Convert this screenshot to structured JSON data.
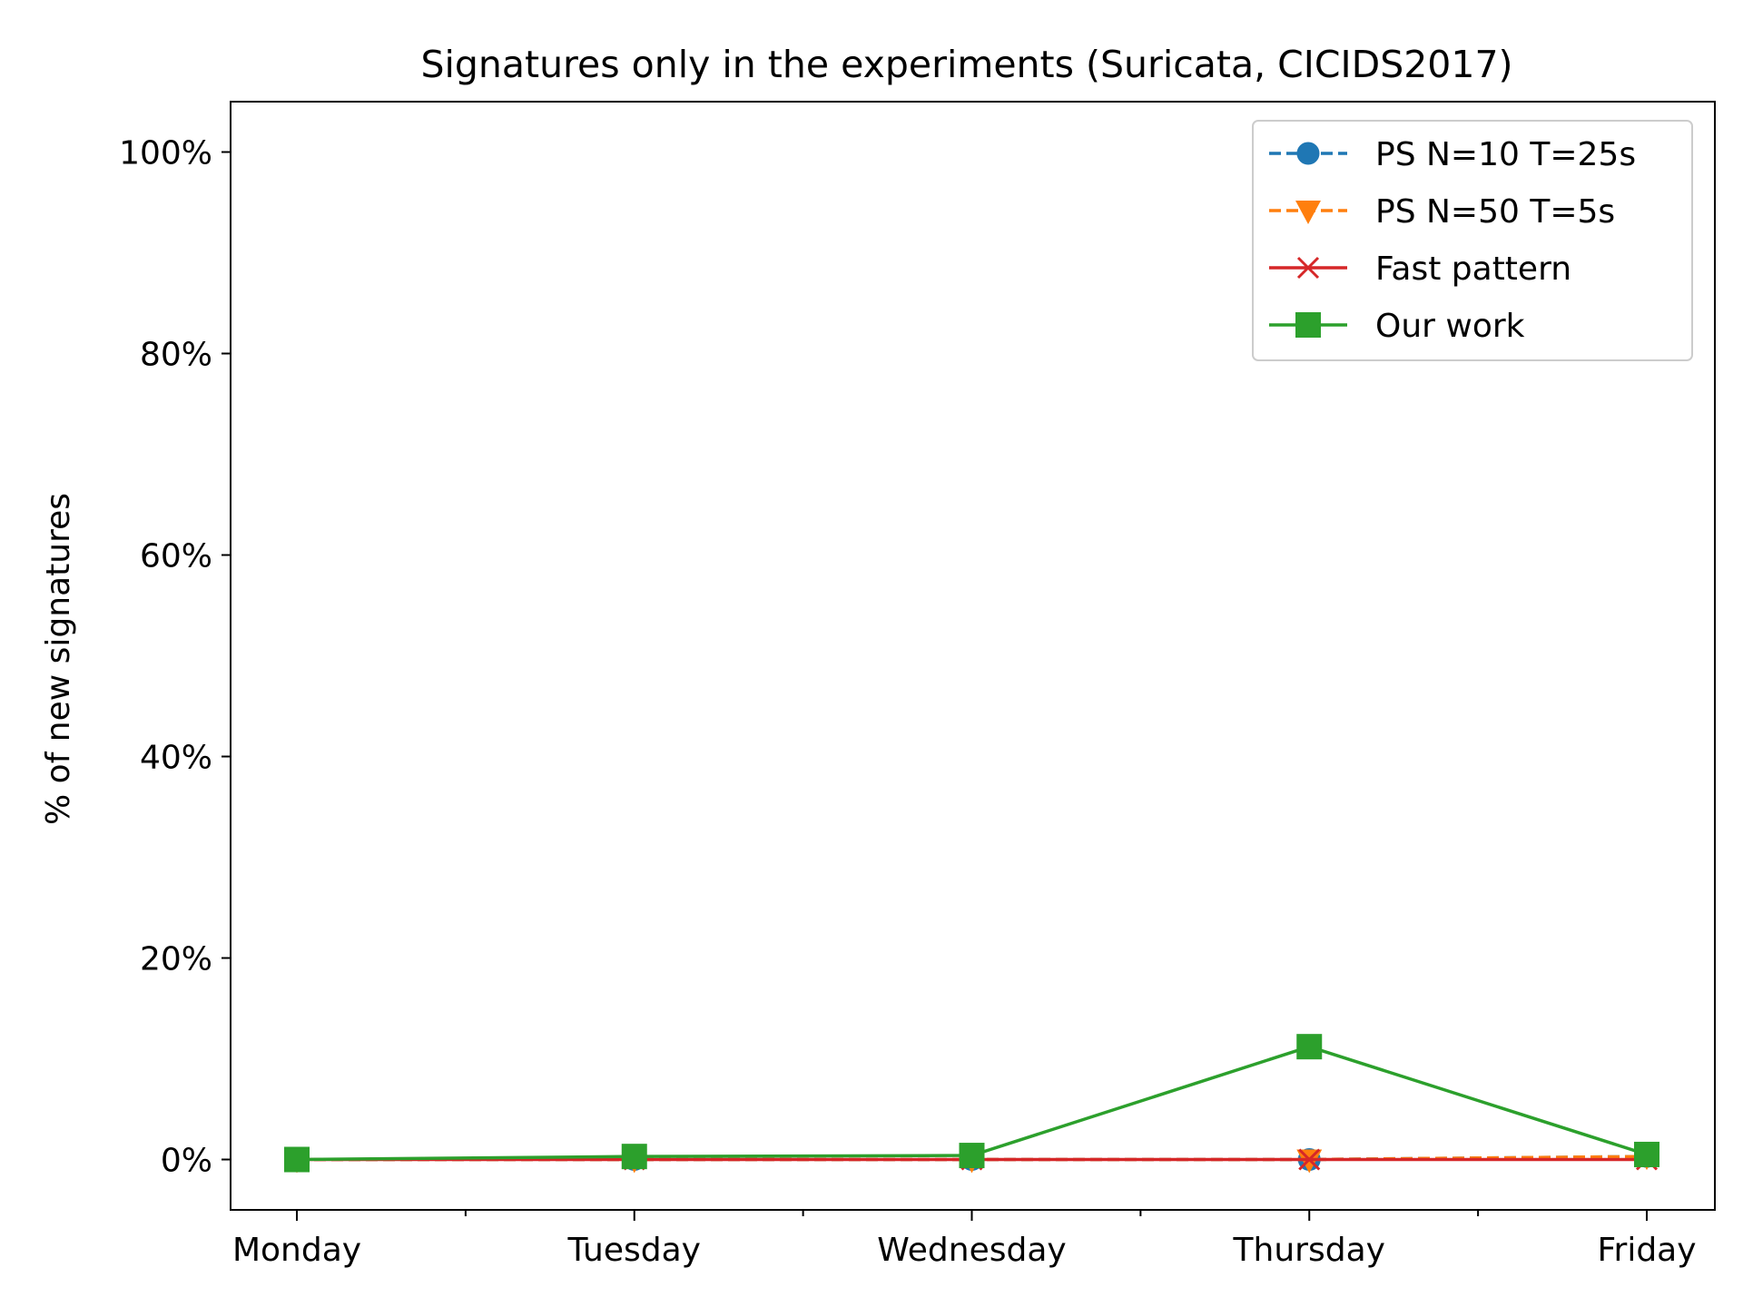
{
  "chart_data": {
    "type": "line",
    "title": "Signatures only in the experiments (Suricata, CICIDS2017)",
    "xlabel": "",
    "ylabel": "% of new signatures",
    "categories": [
      "Monday",
      "Tuesday",
      "Wednesday",
      "Thursday",
      "Friday"
    ],
    "ylim": [
      -5,
      105
    ],
    "yticks": [
      0,
      20,
      40,
      60,
      80,
      100
    ],
    "ytick_labels": [
      "0%",
      "20%",
      "40%",
      "60%",
      "80%",
      "100%"
    ],
    "grid": false,
    "legend_position": "top-right",
    "series": [
      {
        "name": "PS N=10 T=25s",
        "values": [
          0,
          0,
          0,
          0,
          0.3
        ],
        "color": "#1f77b4",
        "line_style": "dashed",
        "marker": "circle"
      },
      {
        "name": "PS N=50 T=5s",
        "values": [
          0,
          0,
          0,
          0,
          0.3
        ],
        "color": "#ff7f0e",
        "line_style": "dashed",
        "marker": "triangle-down"
      },
      {
        "name": "Fast pattern",
        "values": [
          0,
          0,
          0,
          0,
          0
        ],
        "color": "#d62728",
        "line_style": "solid",
        "marker": "x"
      },
      {
        "name": "Our work",
        "values": [
          0,
          0.3,
          0.4,
          11.2,
          0.5
        ],
        "color": "#2ca02c",
        "line_style": "solid",
        "marker": "square"
      }
    ]
  }
}
